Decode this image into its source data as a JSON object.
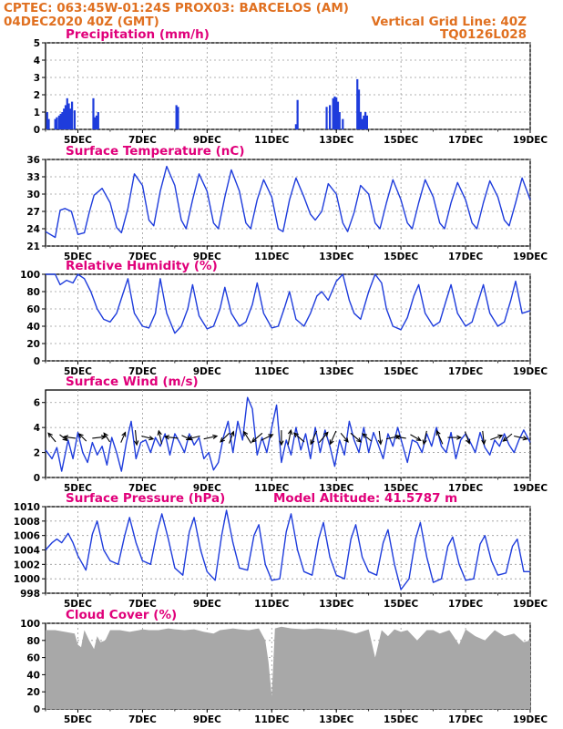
{
  "header": {
    "line1": "CPTEC:   063:45W-01:24S   PROX03: BARCELOS (AM)",
    "line2": "04DEC2020 40Z (GMT)",
    "grid_note": "Vertical Grid Line: 40Z",
    "code": "TQ0126L028"
  },
  "model_altitude": "Model Altitude: 41.5787 m",
  "colors": {
    "header": "#e07020",
    "title": "#e0007a",
    "series": "#1e3cdc",
    "cloud": "#a8a8a8",
    "arrow": "#000000"
  },
  "x_tick_labels": [
    "5DEC",
    "7DEC",
    "9DEC",
    "11DEC",
    "13DEC",
    "15DEC",
    "17DEC",
    "19DEC"
  ],
  "chart_data": [
    {
      "type": "bar",
      "title": "Precipitation (mm/h)",
      "ylim": [
        0,
        5
      ],
      "yticks": [
        "0",
        "1",
        "2",
        "3",
        "4",
        "5"
      ],
      "xlim_days": [
        4.0,
        19.0
      ],
      "x": [
        4.05,
        4.1,
        4.3,
        4.35,
        4.42,
        4.47,
        4.52,
        4.57,
        4.62,
        4.67,
        4.72,
        4.77,
        4.82,
        4.9,
        5.48,
        5.53,
        5.58,
        5.63,
        8.05,
        8.1,
        11.75,
        11.8,
        12.7,
        12.8,
        12.9,
        12.95,
        13.0,
        13.05,
        13.1,
        13.2,
        13.65,
        13.7,
        13.75,
        13.8,
        13.85,
        13.9,
        13.95
      ],
      "values": [
        1.0,
        0.6,
        0.6,
        0.7,
        0.8,
        0.9,
        1.0,
        1.2,
        1.4,
        1.8,
        1.5,
        1.2,
        1.6,
        1.1,
        1.8,
        0.7,
        0.8,
        1.0,
        1.4,
        1.3,
        0.3,
        1.7,
        1.3,
        1.4,
        1.8,
        1.9,
        1.85,
        1.6,
        1.0,
        0.6,
        2.9,
        2.3,
        1.0,
        0.6,
        0.8,
        1.0,
        0.8
      ],
      "grid": true
    },
    {
      "type": "line",
      "title": "Surface Temperature (nC)",
      "ylim": [
        21,
        36
      ],
      "yticks": [
        "21",
        "24",
        "27",
        "30",
        "33",
        "36"
      ],
      "xlim_days": [
        4.0,
        19.0
      ],
      "x": [
        4.0,
        4.3,
        4.45,
        4.6,
        4.8,
        5.0,
        5.2,
        5.35,
        5.5,
        5.75,
        6.0,
        6.2,
        6.35,
        6.55,
        6.75,
        7.0,
        7.2,
        7.35,
        7.55,
        7.75,
        8.0,
        8.2,
        8.35,
        8.55,
        8.75,
        9.0,
        9.2,
        9.35,
        9.55,
        9.75,
        10.0,
        10.2,
        10.35,
        10.55,
        10.75,
        11.0,
        11.2,
        11.35,
        11.55,
        11.75,
        12.0,
        12.2,
        12.35,
        12.55,
        12.75,
        13.0,
        13.2,
        13.35,
        13.55,
        13.75,
        14.0,
        14.2,
        14.35,
        14.55,
        14.75,
        15.0,
        15.2,
        15.35,
        15.55,
        15.75,
        16.0,
        16.2,
        16.35,
        16.55,
        16.75,
        17.0,
        17.2,
        17.35,
        17.55,
        17.75,
        18.0,
        18.2,
        18.35,
        18.55,
        18.75,
        19.0
      ],
      "values": [
        23.5,
        22.5,
        27.2,
        27.5,
        27.0,
        23.0,
        23.3,
        26.8,
        29.8,
        31.0,
        28.5,
        24.2,
        23.3,
        27.5,
        33.5,
        31.5,
        25.5,
        24.5,
        30.5,
        34.8,
        31.5,
        25.5,
        24.0,
        29.0,
        33.5,
        30.5,
        25.0,
        24.0,
        29.5,
        34.2,
        30.5,
        25.0,
        24.0,
        29.0,
        32.5,
        29.5,
        24.0,
        23.5,
        29.0,
        32.8,
        29.5,
        26.5,
        25.5,
        27.0,
        31.8,
        30.0,
        25.0,
        23.5,
        26.8,
        31.5,
        30.0,
        25.0,
        24.0,
        28.5,
        32.5,
        29.0,
        25.0,
        24.0,
        28.5,
        32.5,
        29.5,
        25.0,
        24.0,
        28.5,
        32.0,
        29.0,
        25.0,
        24.0,
        28.5,
        32.3,
        29.5,
        25.5,
        24.5,
        28.5,
        32.8,
        29.0
      ],
      "grid": true
    },
    {
      "type": "line",
      "title": "Relative Humidity (%)",
      "ylim": [
        0,
        100
      ],
      "yticks": [
        "0",
        "20",
        "40",
        "60",
        "80",
        "100"
      ],
      "xlim_days": [
        4.0,
        19.0
      ],
      "x": [
        4.0,
        4.3,
        4.45,
        4.65,
        4.85,
        5.0,
        5.2,
        5.4,
        5.6,
        5.8,
        6.0,
        6.2,
        6.4,
        6.55,
        6.75,
        7.0,
        7.2,
        7.4,
        7.55,
        7.75,
        8.0,
        8.2,
        8.4,
        8.55,
        8.75,
        9.0,
        9.2,
        9.4,
        9.55,
        9.75,
        10.0,
        10.2,
        10.4,
        10.55,
        10.75,
        11.0,
        11.2,
        11.4,
        11.55,
        11.75,
        12.0,
        12.2,
        12.4,
        12.55,
        12.75,
        13.0,
        13.2,
        13.4,
        13.55,
        13.75,
        14.0,
        14.2,
        14.4,
        14.55,
        14.75,
        15.0,
        15.2,
        15.4,
        15.55,
        15.75,
        16.0,
        16.2,
        16.4,
        16.55,
        16.75,
        17.0,
        17.2,
        17.4,
        17.55,
        17.75,
        18.0,
        18.2,
        18.4,
        18.55,
        18.75,
        19.0
      ],
      "values": [
        100,
        100,
        88,
        93,
        90,
        100,
        95,
        80,
        60,
        48,
        45,
        55,
        78,
        95,
        55,
        40,
        38,
        55,
        95,
        55,
        32,
        40,
        60,
        88,
        52,
        37,
        40,
        60,
        85,
        55,
        40,
        45,
        65,
        90,
        55,
        38,
        40,
        62,
        80,
        48,
        40,
        55,
        75,
        80,
        70,
        92,
        100,
        70,
        55,
        48,
        80,
        100,
        90,
        60,
        40,
        36,
        50,
        75,
        88,
        55,
        40,
        45,
        70,
        88,
        55,
        40,
        45,
        70,
        88,
        55,
        40,
        45,
        70,
        92,
        55,
        58
      ],
      "grid": true
    },
    {
      "type": "line",
      "title": "Surface Wind (m/s)",
      "ylim": [
        0,
        7
      ],
      "yticks": [
        "0",
        "2",
        "4",
        "6"
      ],
      "xlim_days": [
        4.0,
        19.0
      ],
      "x": [
        4.0,
        4.2,
        4.35,
        4.5,
        4.7,
        4.85,
        5.0,
        5.15,
        5.3,
        5.45,
        5.6,
        5.75,
        5.9,
        6.05,
        6.2,
        6.35,
        6.5,
        6.65,
        6.8,
        6.95,
        7.1,
        7.25,
        7.4,
        7.55,
        7.7,
        7.85,
        8.0,
        8.15,
        8.3,
        8.45,
        8.6,
        8.75,
        8.9,
        9.05,
        9.2,
        9.35,
        9.5,
        9.65,
        9.8,
        9.95,
        10.1,
        10.25,
        10.4,
        10.55,
        10.7,
        10.85,
        11.0,
        11.15,
        11.3,
        11.45,
        11.6,
        11.75,
        11.9,
        12.05,
        12.2,
        12.35,
        12.5,
        12.65,
        12.8,
        12.95,
        13.1,
        13.25,
        13.4,
        13.55,
        13.7,
        13.85,
        14.0,
        14.15,
        14.3,
        14.45,
        14.6,
        14.75,
        14.9,
        15.05,
        15.2,
        15.35,
        15.5,
        15.65,
        15.8,
        15.95,
        16.1,
        16.25,
        16.4,
        16.55,
        16.7,
        16.85,
        17.0,
        17.15,
        17.3,
        17.45,
        17.6,
        17.75,
        17.9,
        18.05,
        18.2,
        18.35,
        18.5,
        18.65,
        18.8,
        19.0
      ],
      "values": [
        2.2,
        1.5,
        2.4,
        0.5,
        3.0,
        1.5,
        3.6,
        2.0,
        1.2,
        2.8,
        1.8,
        2.5,
        1.0,
        3.2,
        2.0,
        0.5,
        2.8,
        4.5,
        1.5,
        2.8,
        3.0,
        2.0,
        3.2,
        2.5,
        3.5,
        1.8,
        3.5,
        2.8,
        2.0,
        3.5,
        2.6,
        3.2,
        1.5,
        2.0,
        0.6,
        1.2,
        3.2,
        4.5,
        2.0,
        4.5,
        3.0,
        6.4,
        5.5,
        1.8,
        3.2,
        2.0,
        4.0,
        5.8,
        1.2,
        3.0,
        1.8,
        4.0,
        2.2,
        3.5,
        1.5,
        4.0,
        2.0,
        3.8,
        2.5,
        0.9,
        3.0,
        1.8,
        4.5,
        3.0,
        2.0,
        4.0,
        2.0,
        3.6,
        2.6,
        1.5,
        3.5,
        2.5,
        4.0,
        2.6,
        1.2,
        3.0,
        2.8,
        2.0,
        3.5,
        2.5,
        4.0,
        2.5,
        2.0,
        3.6,
        1.5,
        3.0,
        3.5,
        2.8,
        2.0,
        3.6,
        2.4,
        1.8,
        3.0,
        2.5,
        3.5,
        2.6,
        2.0,
        3.0,
        3.8,
        2.8
      ],
      "wind_arrows": [
        {
          "day": 4.2,
          "u": -0.5,
          "v": 0.6
        },
        {
          "day": 4.55,
          "u": 0.5,
          "v": -0.4
        },
        {
          "day": 4.75,
          "u": -0.8,
          "v": 0.1
        },
        {
          "day": 5.15,
          "u": -0.5,
          "v": 0.5
        },
        {
          "day": 5.65,
          "u": 0.9,
          "v": 0.1
        },
        {
          "day": 5.9,
          "u": -0.4,
          "v": 0.6
        },
        {
          "day": 6.4,
          "u": 0.3,
          "v": 0.7
        },
        {
          "day": 6.8,
          "u": 0.1,
          "v": -1.0
        },
        {
          "day": 7.15,
          "u": 0.8,
          "v": -0.2
        },
        {
          "day": 7.55,
          "u": -0.2,
          "v": 0.9
        },
        {
          "day": 7.9,
          "u": -0.9,
          "v": 0.1
        },
        {
          "day": 8.35,
          "u": 0.6,
          "v": -0.3
        },
        {
          "day": 8.6,
          "u": -0.8,
          "v": -0.2
        },
        {
          "day": 9.1,
          "u": 0.9,
          "v": 0.2
        },
        {
          "day": 9.55,
          "u": -0.6,
          "v": -0.6
        },
        {
          "day": 9.75,
          "u": 0.3,
          "v": 0.8
        },
        {
          "day": 10.25,
          "u": -0.5,
          "v": 0.8
        },
        {
          "day": 10.55,
          "u": -0.7,
          "v": -0.6
        },
        {
          "day": 10.85,
          "u": 0.8,
          "v": 0.4
        },
        {
          "day": 11.3,
          "u": 0.0,
          "v": -1.0
        },
        {
          "day": 11.55,
          "u": 0.2,
          "v": 1.0
        },
        {
          "day": 11.85,
          "u": -0.7,
          "v": 0.6
        },
        {
          "day": 12.3,
          "u": -0.4,
          "v": -0.9
        },
        {
          "day": 12.6,
          "u": 0.6,
          "v": 0.7
        },
        {
          "day": 12.9,
          "u": -0.4,
          "v": -0.9
        },
        {
          "day": 13.25,
          "u": 0.5,
          "v": -0.6
        },
        {
          "day": 13.6,
          "u": 0.7,
          "v": -0.6
        },
        {
          "day": 13.95,
          "u": -0.6,
          "v": 0.5
        },
        {
          "day": 14.35,
          "u": 0.1,
          "v": -0.9
        },
        {
          "day": 14.75,
          "u": 0.9,
          "v": 0.2
        },
        {
          "day": 15.0,
          "u": -0.7,
          "v": 0.1
        },
        {
          "day": 15.45,
          "u": 0.7,
          "v": -0.4
        },
        {
          "day": 15.75,
          "u": -0.2,
          "v": -0.9
        },
        {
          "day": 16.2,
          "u": -0.4,
          "v": 0.9
        },
        {
          "day": 16.65,
          "u": 0.9,
          "v": 0.0
        },
        {
          "day": 17.05,
          "u": 0.3,
          "v": -0.8
        },
        {
          "day": 17.55,
          "u": 0.1,
          "v": -0.9
        },
        {
          "day": 17.95,
          "u": 0.8,
          "v": 0.3
        },
        {
          "day": 18.3,
          "u": -0.6,
          "v": -0.5
        },
        {
          "day": 18.7,
          "u": 0.9,
          "v": -0.2
        }
      ],
      "grid": true
    },
    {
      "type": "line",
      "title": "Surface Pressure (hPa)",
      "ylim": [
        998,
        1010
      ],
      "yticks": [
        "998",
        "1000",
        "1002",
        "1004",
        "1006",
        "1008",
        "1010"
      ],
      "xlim_days": [
        4.0,
        19.0
      ],
      "x": [
        4.0,
        4.2,
        4.35,
        4.5,
        4.7,
        4.85,
        5.0,
        5.25,
        5.45,
        5.6,
        5.8,
        6.0,
        6.25,
        6.45,
        6.6,
        6.8,
        7.0,
        7.25,
        7.45,
        7.6,
        7.8,
        8.0,
        8.25,
        8.45,
        8.6,
        8.8,
        9.0,
        9.25,
        9.45,
        9.6,
        9.8,
        10.0,
        10.25,
        10.45,
        10.6,
        10.8,
        11.0,
        11.25,
        11.45,
        11.6,
        11.8,
        12.0,
        12.25,
        12.45,
        12.6,
        12.8,
        13.0,
        13.25,
        13.45,
        13.6,
        13.8,
        14.0,
        14.25,
        14.45,
        14.6,
        14.8,
        15.0,
        15.25,
        15.45,
        15.6,
        15.8,
        16.0,
        16.25,
        16.45,
        16.6,
        16.8,
        17.0,
        17.25,
        17.45,
        17.6,
        17.8,
        18.0,
        18.25,
        18.45,
        18.6,
        18.8,
        19.0
      ],
      "values": [
        1004.0,
        1005.0,
        1005.5,
        1005.0,
        1006.3,
        1005.0,
        1003.2,
        1001.2,
        1006.2,
        1008.0,
        1004.0,
        1002.5,
        1002.0,
        1006.0,
        1008.5,
        1005.0,
        1002.5,
        1002.0,
        1006.5,
        1009.0,
        1005.5,
        1001.5,
        1000.5,
        1006.5,
        1008.5,
        1004.0,
        1001.0,
        999.8,
        1006.0,
        1009.5,
        1005.0,
        1001.5,
        1001.2,
        1006.0,
        1007.5,
        1002.0,
        999.8,
        1000.0,
        1006.5,
        1009.0,
        1004.0,
        1001.0,
        1000.5,
        1005.5,
        1007.8,
        1003.0,
        1000.5,
        1000.0,
        1005.5,
        1007.5,
        1003.0,
        1001.0,
        1000.5,
        1005.0,
        1006.8,
        1002.0,
        998.5,
        1000.0,
        1005.5,
        1007.8,
        1003.0,
        999.5,
        1000.0,
        1004.5,
        1005.8,
        1002.0,
        999.8,
        1000.0,
        1004.8,
        1006.0,
        1002.5,
        1000.5,
        1000.8,
        1004.5,
        1005.5,
        1001.0,
        1001.0
      ],
      "grid": true
    },
    {
      "type": "area",
      "title": "Cloud Cover (%)",
      "ylim": [
        0,
        100
      ],
      "yticks": [
        "0",
        "20",
        "40",
        "60",
        "80",
        "100"
      ],
      "xlim_days": [
        4.0,
        19.0
      ],
      "x": [
        4.0,
        4.3,
        4.6,
        4.9,
        5.0,
        5.1,
        5.2,
        5.35,
        5.5,
        5.6,
        5.7,
        5.85,
        6.0,
        6.3,
        6.6,
        6.9,
        7.0,
        7.2,
        7.5,
        7.8,
        8.0,
        8.3,
        8.6,
        8.9,
        9.2,
        9.4,
        9.6,
        9.8,
        10.0,
        10.3,
        10.6,
        10.8,
        10.9,
        11.0,
        11.1,
        11.3,
        11.6,
        12.0,
        12.4,
        12.8,
        13.2,
        13.6,
        14.0,
        14.2,
        14.4,
        14.6,
        14.8,
        15.0,
        15.2,
        15.5,
        15.8,
        16.0,
        16.2,
        16.5,
        16.8,
        17.0,
        17.3,
        17.6,
        17.9,
        18.2,
        18.5,
        18.8,
        19.0
      ],
      "values": [
        92,
        92,
        90,
        88,
        75,
        72,
        92,
        80,
        70,
        85,
        78,
        80,
        92,
        92,
        90,
        92,
        93,
        92,
        92,
        94,
        93,
        92,
        93,
        90,
        88,
        92,
        93,
        94,
        93,
        92,
        94,
        80,
        55,
        15,
        94,
        96,
        94,
        93,
        94,
        93,
        92,
        88,
        93,
        60,
        92,
        85,
        93,
        90,
        92,
        80,
        92,
        92,
        88,
        92,
        75,
        93,
        85,
        80,
        92,
        85,
        88,
        78,
        80
      ],
      "grid": true
    }
  ]
}
